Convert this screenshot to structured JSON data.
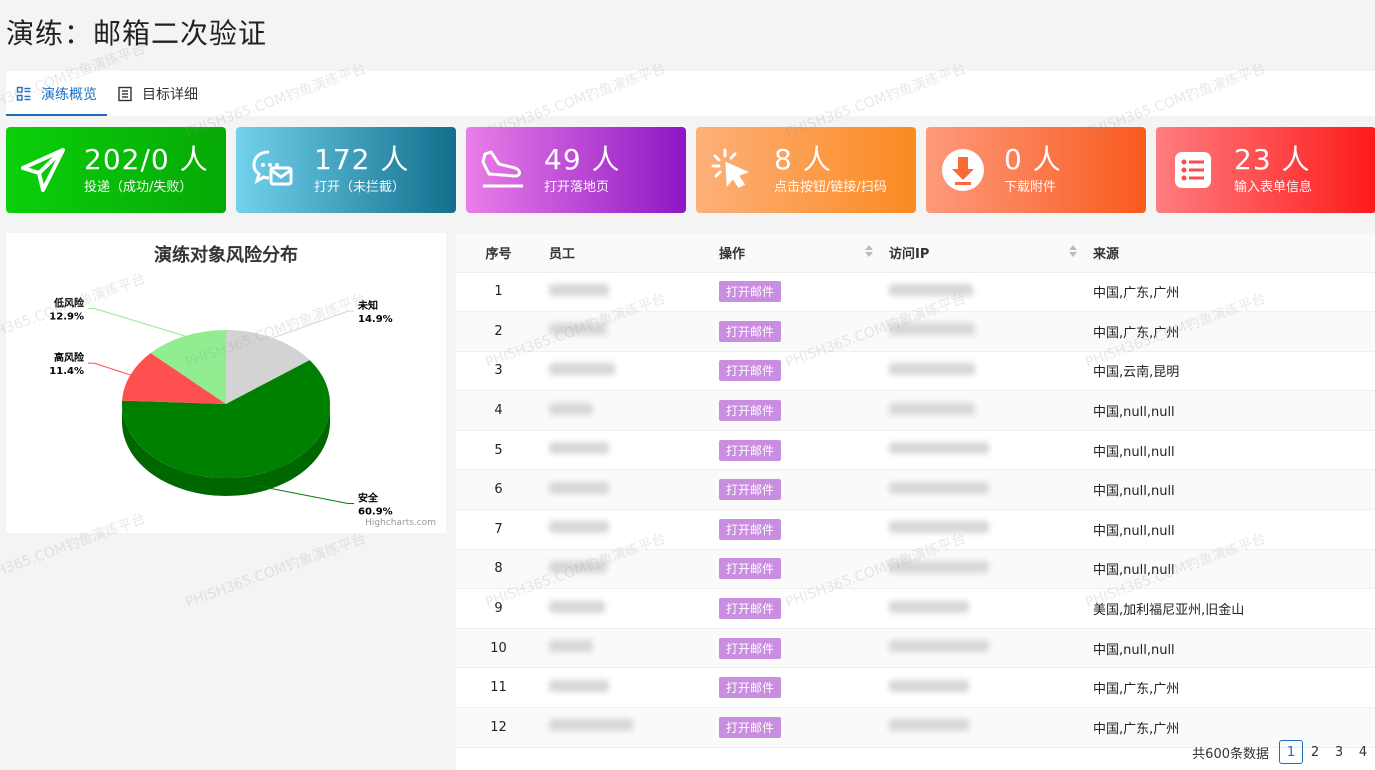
{
  "page": {
    "title": "演练：邮箱二次验证"
  },
  "tabs": [
    {
      "label": "演练概览",
      "active": true,
      "icon": "overview-grid-icon"
    },
    {
      "label": "目标详细",
      "active": false,
      "icon": "document-list-icon"
    }
  ],
  "stats": [
    {
      "value": "202/0 人",
      "label": "投递（成功/失败）",
      "icon": "send-plane-icon"
    },
    {
      "value": "172 人",
      "label": "打开（未拦截）",
      "icon": "open-mail-chat-icon"
    },
    {
      "value": "49 人",
      "label": "打开落地页",
      "icon": "landing-plane-icon"
    },
    {
      "value": "8 人",
      "label": "点击按钮/链接/扫码",
      "icon": "click-cursor-icon"
    },
    {
      "value": "0 人",
      "label": "下载附件",
      "icon": "download-icon"
    },
    {
      "value": "23 人",
      "label": "输入表单信息",
      "icon": "form-list-icon"
    }
  ],
  "chart_data": {
    "type": "pie",
    "title": "演练对象风险分布",
    "credit": "Highcharts.com",
    "slices": [
      {
        "name": "未知",
        "value": 14.9,
        "label": "14.9%",
        "color": "#d3d3d3"
      },
      {
        "name": "安全",
        "value": 60.9,
        "label": "60.9%",
        "color": "#008000"
      },
      {
        "name": "高风险",
        "value": 11.4,
        "label": "11.4%",
        "color": "#ff5050"
      },
      {
        "name": "低风险",
        "value": 12.9,
        "label": "12.9%",
        "color": "#90ee90"
      }
    ]
  },
  "table": {
    "columns": [
      "序号",
      "员工",
      "操作",
      "访问IP",
      "来源"
    ],
    "action_label": "打开邮件",
    "rows": [
      {
        "idx": "1",
        "source": "中国,广东,广州"
      },
      {
        "idx": "2",
        "source": "中国,广东,广州"
      },
      {
        "idx": "3",
        "source": "中国,云南,昆明"
      },
      {
        "idx": "4",
        "source": "中国,null,null"
      },
      {
        "idx": "5",
        "source": "中国,null,null"
      },
      {
        "idx": "6",
        "source": "中国,null,null"
      },
      {
        "idx": "7",
        "source": "中国,null,null"
      },
      {
        "idx": "8",
        "source": "中国,null,null"
      },
      {
        "idx": "9",
        "source": "美国,加利福尼亚州,旧金山"
      },
      {
        "idx": "10",
        "source": "中国,null,null"
      },
      {
        "idx": "11",
        "source": "中国,广东,广州"
      },
      {
        "idx": "12",
        "source": "中国,广东,广州"
      }
    ]
  },
  "pagination": {
    "total": "共600条数据",
    "pages": [
      "1",
      "2",
      "3",
      "4"
    ],
    "current": "1"
  },
  "watermark": "PHISH365.COM钓鱼演练平台"
}
